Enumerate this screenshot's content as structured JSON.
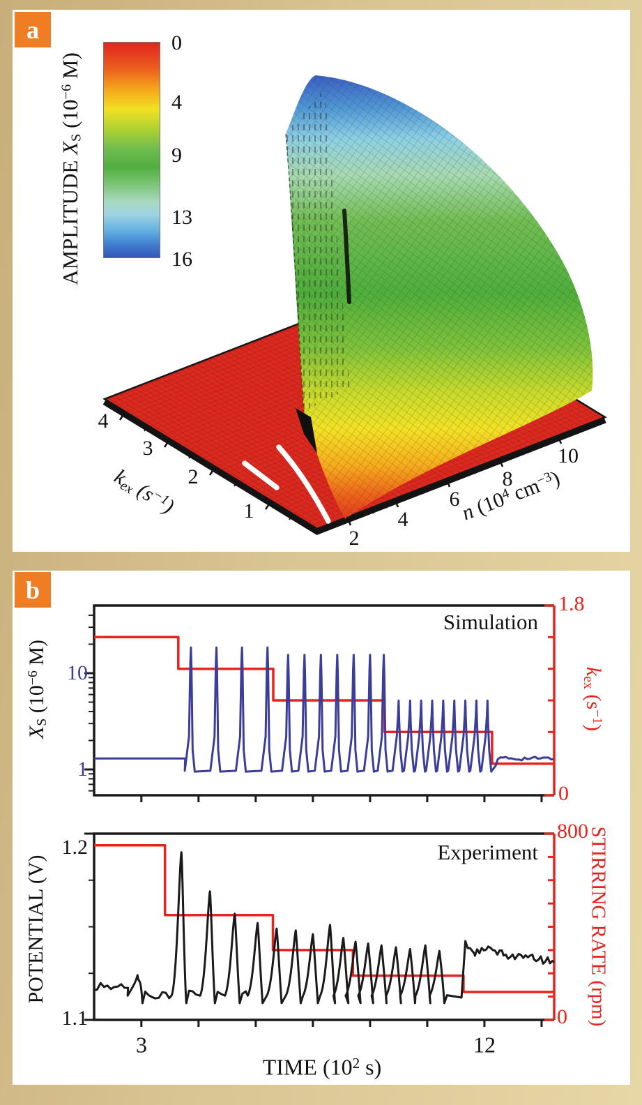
{
  "panels": {
    "a": {
      "label": "a"
    },
    "b": {
      "label": "b"
    }
  },
  "chart_data": [
    {
      "type": "surface_3d",
      "panel": "a",
      "color_axis": {
        "label": "AMPLITUDE XS (10−6 M)",
        "label_rich": [
          {
            "t": "AMPLITUDE ",
            "f": "n"
          },
          {
            "t": "X",
            "f": "i"
          },
          {
            "t": "S",
            "f": "sub"
          },
          {
            "t": " (10",
            "f": "n"
          },
          {
            "t": "−6",
            "f": "sup"
          },
          {
            "t": " M)",
            "f": "n"
          }
        ],
        "ticks": [
          0,
          4,
          9,
          13,
          16
        ],
        "range": [
          0,
          16
        ],
        "colormap_top_to_bottom": [
          "#e32420",
          "#f5a81c",
          "#f2e123",
          "#52ae3e",
          "#9fd3e2",
          "#3356b8"
        ]
      },
      "x_axis": {
        "label": "n (104 cm−3)",
        "label_rich": [
          {
            "t": "n",
            "f": "i"
          },
          {
            "t": " (10",
            "f": "n"
          },
          {
            "t": "4",
            "f": "sup"
          },
          {
            "t": " cm",
            "f": "n"
          },
          {
            "t": "−3",
            "f": "sup"
          },
          {
            "t": ")",
            "f": "n"
          }
        ],
        "ticks": [
          2,
          4,
          6,
          8,
          10
        ],
        "range": [
          1,
          10
        ]
      },
      "y_axis": {
        "label": "kex (s−1)",
        "label_rich": [
          {
            "t": "k",
            "f": "i"
          },
          {
            "t": "ex",
            "f": "sub"
          },
          {
            "t": " (s",
            "f": "n"
          },
          {
            "t": "−1",
            "f": "sup"
          },
          {
            "t": ")",
            "f": "n"
          }
        ],
        "ticks": [
          4,
          3,
          2,
          1
        ],
        "range": [
          0.5,
          4.3
        ]
      },
      "surface_description": "Oscillation amplitude is zero (flat red floor) at high kex and low n; it rises across a steep bifurcation cliff near kex ≈ 1–1.5 and n ≈ 2 (front edge marked by a thick white curve, with a second short white segment on the floor) and grows smoothly to ≈16×10−6 M (blue summit) toward low kex and high n ≈ 5–7, falling back to zero (red) at the far right corner.",
      "white_curve": "bifurcation boundary on the surface front fold"
    },
    {
      "type": "line",
      "panel": "b-top",
      "title": "Simulation",
      "x_axis": {
        "label": "TIME (102 s)",
        "range": [
          1.76,
          13.83
        ],
        "ticks": [
          3,
          4.5,
          6,
          7.5,
          9,
          10.5,
          12,
          13.5
        ]
      },
      "y_left": {
        "label": "XS (10−6 M)",
        "label_rich": [
          {
            "t": "X",
            "f": "i"
          },
          {
            "t": "S",
            "f": "sub"
          },
          {
            "t": " (10",
            "f": "n"
          },
          {
            "t": "−6",
            "f": "sup"
          },
          {
            "t": " M)",
            "f": "n"
          }
        ],
        "scale": "log",
        "ticks": [
          1,
          10
        ],
        "labeled_ticks": [
          "10",
          "1"
        ],
        "range": [
          0.55,
          50
        ],
        "color": "#3a3e99"
      },
      "y_right": {
        "label": "kex (s−1)",
        "label_rich": [
          {
            "t": "k",
            "f": "i"
          },
          {
            "t": "ex",
            "f": "sub"
          },
          {
            "t": " (s",
            "f": "n"
          },
          {
            "t": "−1",
            "f": "sup"
          },
          {
            "t": ")",
            "f": "n"
          }
        ],
        "range": [
          0,
          1.8
        ],
        "ticks": [
          0,
          0.3,
          0.6,
          0.9,
          1.2,
          1.5,
          1.8
        ],
        "labeled_ticks": [
          "1.8",
          "0"
        ],
        "color": "#e8221c"
      },
      "series": [
        {
          "name": "kex staircase",
          "color": "#e8221c",
          "style": "steps",
          "points": [
            [
              1.76,
              1.5
            ],
            [
              3.97,
              1.2
            ],
            [
              6.46,
              0.9
            ],
            [
              9.38,
              0.6
            ],
            [
              12.2,
              0.3
            ],
            [
              13.83,
              0.3
            ]
          ]
        },
        {
          "name": "XS oscillations",
          "color": "#3a3e99",
          "style": "spike-train",
          "baseline": 1.3,
          "interspike_base": 0.95,
          "quiet_until": 4.15,
          "spike_groups": [
            {
              "times": [
                4.3,
                4.97,
                5.64,
                6.31
              ],
              "peak": 18.5
            },
            {
              "times": [
                6.85,
                7.28,
                7.71,
                8.14,
                8.57,
                9.0,
                9.36
              ],
              "peak": 15.5
            },
            {
              "times": [
                9.75,
                10.05,
                10.34,
                10.63,
                10.92,
                11.21,
                11.5,
                11.79,
                12.08
              ],
              "peak": 5.2
            }
          ],
          "final_level": 1.3,
          "final_from": 12.3
        }
      ]
    },
    {
      "type": "line",
      "panel": "b-bottom",
      "title": "Experiment",
      "x_axis": {
        "label": "TIME (102 s)",
        "label_rich": [
          {
            "t": "TIME (10",
            "f": "n"
          },
          {
            "t": "2",
            "f": "sup"
          },
          {
            "t": " s)",
            "f": "n"
          }
        ],
        "range": [
          1.76,
          13.83
        ],
        "ticks": [
          3,
          4.5,
          6,
          7.5,
          9,
          10.5,
          12,
          13.5
        ],
        "labeled_ticks": [
          "3",
          "12"
        ]
      },
      "y_left": {
        "label": "POTENTIAL (V)",
        "label_rich": [
          {
            "t": "POTENTIAL (V)",
            "f": "n"
          }
        ],
        "range": [
          1.1,
          1.2
        ],
        "ticks": [
          1.1,
          1.125,
          1.15,
          1.175,
          1.2
        ],
        "labeled_ticks": [
          "1.2",
          "1.1"
        ]
      },
      "y_right": {
        "label": "STIRRING RATE (rpm)",
        "label_rich": [
          {
            "t": "STIRRING RATE (rpm)",
            "f": "n"
          }
        ],
        "range": [
          0,
          800
        ],
        "tick_step": 100,
        "labeled_ticks": [
          "800",
          "0"
        ],
        "color": "#e8221c"
      },
      "series": [
        {
          "name": "stirring rate staircase",
          "color": "#e8221c",
          "style": "steps",
          "points": [
            [
              1.76,
              750
            ],
            [
              3.62,
              450
            ],
            [
              6.45,
              300
            ],
            [
              8.55,
              190
            ],
            [
              11.45,
              120
            ],
            [
              13.83,
              120
            ]
          ]
        },
        {
          "name": "potential trace",
          "color": "#1a1a1a",
          "style": "spike-train",
          "baseline": 1.118,
          "spikes": [
            [
              2.9,
              1.124
            ],
            [
              4.05,
              1.19
            ],
            [
              4.8,
              1.169
            ],
            [
              5.45,
              1.157
            ],
            [
              6.05,
              1.152
            ],
            [
              6.55,
              1.149
            ],
            [
              7.05,
              1.148
            ],
            [
              7.5,
              1.146
            ],
            [
              7.95,
              1.151
            ],
            [
              8.3,
              1.144
            ],
            [
              8.62,
              1.142
            ],
            [
              8.95,
              1.141
            ],
            [
              9.3,
              1.14
            ],
            [
              9.68,
              1.139
            ],
            [
              10.05,
              1.138
            ],
            [
              10.45,
              1.14
            ],
            [
              10.82,
              1.137
            ]
          ],
          "plateau": [
            [
              11.5,
              1.141
            ],
            [
              11.75,
              1.136
            ],
            [
              12.1,
              1.138
            ],
            [
              12.5,
              1.135
            ],
            [
              12.9,
              1.134
            ],
            [
              13.3,
              1.133
            ],
            [
              13.83,
              1.131
            ]
          ]
        }
      ]
    }
  ]
}
